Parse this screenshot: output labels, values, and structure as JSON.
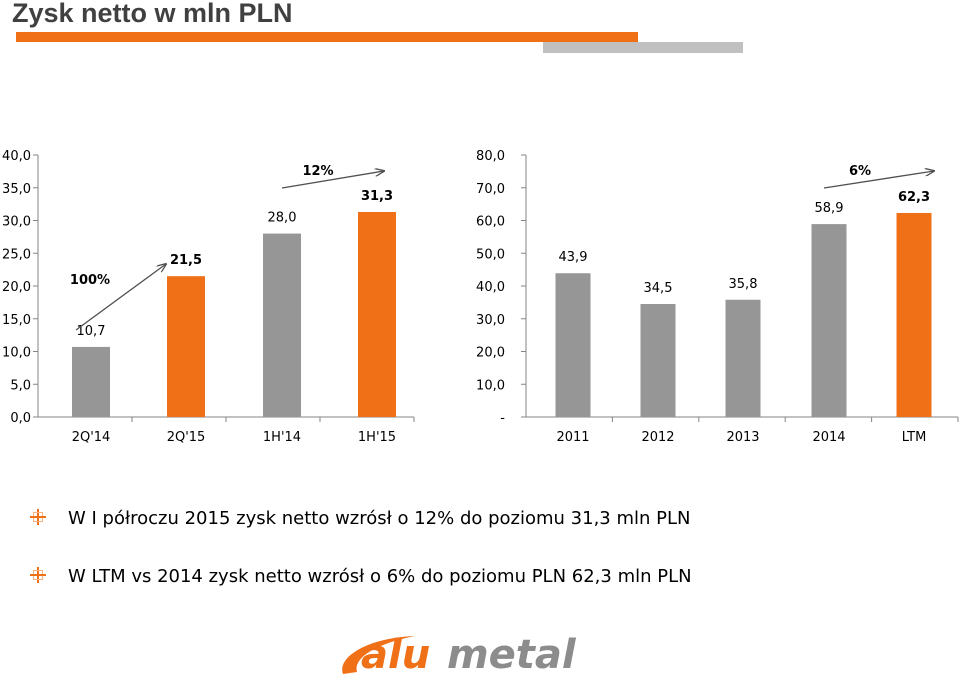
{
  "header": {
    "title": "Zysk netto w mln PLN",
    "accent_color": "#f07018",
    "secondary_color": "#c0c0c0"
  },
  "chart_data": [
    {
      "type": "bar",
      "categories": [
        "2Q'14",
        "2Q'15",
        "1H'14",
        "1H'15"
      ],
      "values": [
        10.7,
        21.5,
        28.0,
        31.3
      ],
      "value_labels": [
        "10,7",
        "21,5",
        "28,0",
        "31,3"
      ],
      "bar_colors": [
        "#969696",
        "#f07018",
        "#969696",
        "#f07018"
      ],
      "ylim": [
        0,
        40
      ],
      "yticks": [
        "0,0",
        "5,0",
        "10,0",
        "15,0",
        "20,0",
        "25,0",
        "30,0",
        "35,0",
        "40,0"
      ],
      "annotations": [
        {
          "text": "100%",
          "from": "2Q'14",
          "to": "2Q'15"
        },
        {
          "text": "12%",
          "from": "1H'14",
          "to": "1H'15"
        }
      ],
      "grid": false
    },
    {
      "type": "bar",
      "categories": [
        "2011",
        "2012",
        "2013",
        "2014",
        "LTM"
      ],
      "values": [
        43.9,
        34.5,
        35.8,
        58.9,
        62.3
      ],
      "value_labels": [
        "43,9",
        "34,5",
        "35,8",
        "58,9",
        "62,3"
      ],
      "bar_colors": [
        "#969696",
        "#969696",
        "#969696",
        "#969696",
        "#f07018"
      ],
      "ylim": [
        0,
        80
      ],
      "yticks": [
        "-",
        "10,0",
        "20,0",
        "30,0",
        "40,0",
        "50,0",
        "60,0",
        "70,0",
        "80,0"
      ],
      "annotations": [
        {
          "text": "6%",
          "from": "2014",
          "to": "LTM"
        }
      ],
      "grid": false
    }
  ],
  "bullets": [
    "W I półroczu 2015 zysk netto wzrósł o 12% do poziomu 31,3 mln PLN",
    "W LTM vs 2014  zysk netto wzrósł o 6% do poziomu PLN 62,3 mln PLN"
  ],
  "logo": {
    "text_part1": "alu",
    "text_part2": "metal",
    "icon": "alumetal-swoosh-logo"
  }
}
